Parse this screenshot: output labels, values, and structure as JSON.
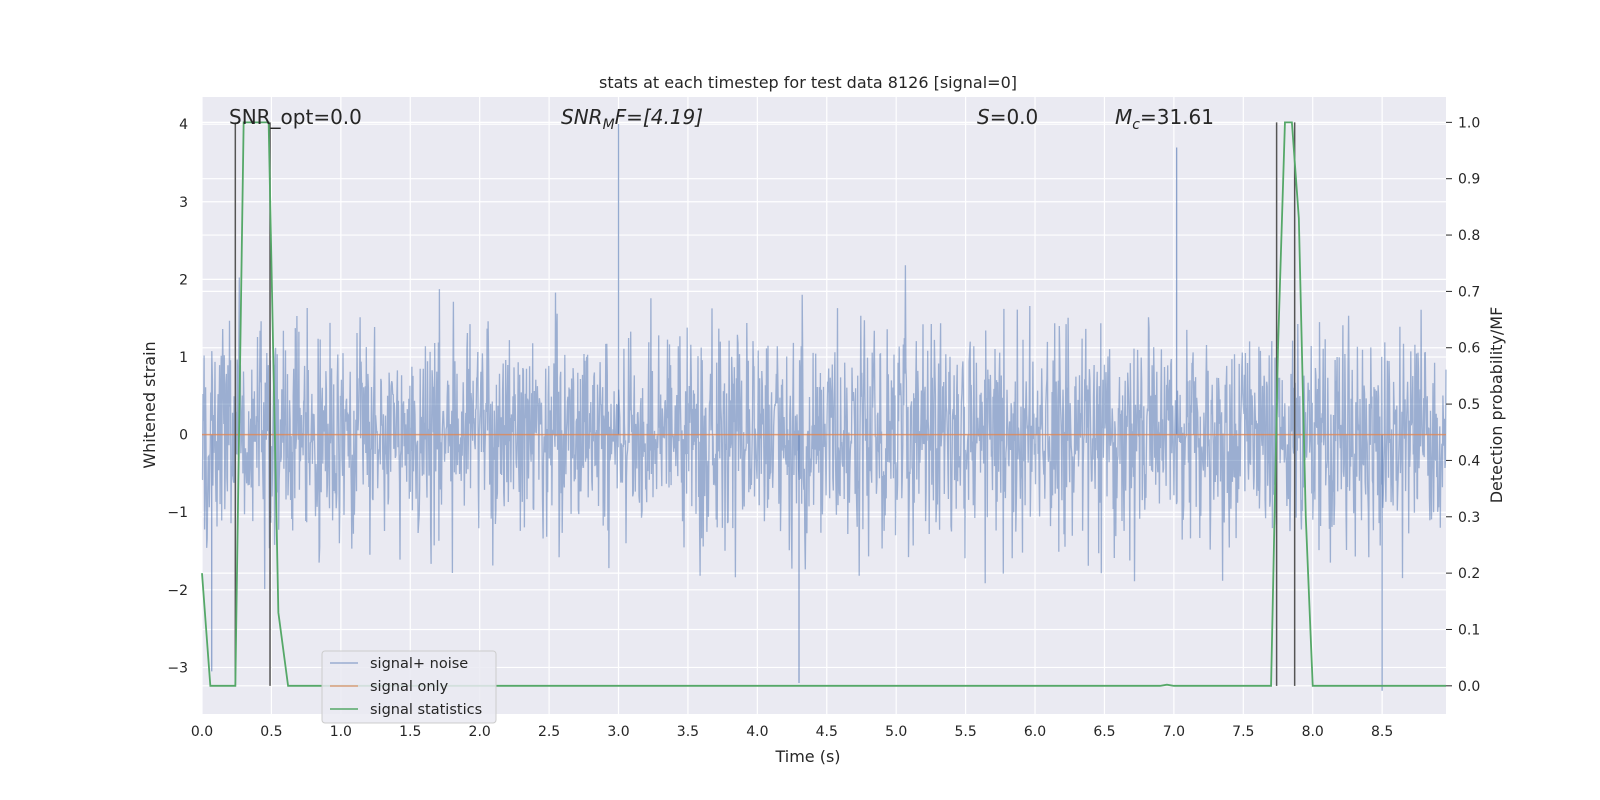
{
  "chart_data": {
    "type": "line",
    "title": "stats at each timestep for test data 8126 [signal=0]",
    "xlabel": "Time (s)",
    "ylabel_left": "Whitened strain",
    "ylabel_right": "Detection probability/MF",
    "xlim": [
      0.0,
      8.96
    ],
    "ylim_left": [
      -3.6,
      4.35
    ],
    "ylim_right": [
      -0.05,
      1.045
    ],
    "x_ticks": [
      "0.0",
      "0.5",
      "1.0",
      "1.5",
      "2.0",
      "2.5",
      "3.0",
      "3.5",
      "4.0",
      "4.5",
      "5.0",
      "5.5",
      "6.0",
      "6.5",
      "7.0",
      "7.5",
      "8.0",
      "8.5"
    ],
    "y_ticks_left": [
      "−3",
      "−2",
      "−1",
      "0",
      "1",
      "2",
      "3",
      "4"
    ],
    "y_ticks_right": [
      "0.0",
      "0.1",
      "0.2",
      "0.3",
      "0.4",
      "0.5",
      "0.6",
      "0.7",
      "0.8",
      "0.9",
      "1.0"
    ],
    "grid": true,
    "legend_position": "lower-left",
    "colors": {
      "signal_noise": "#4c72b0",
      "signal_only": "#dd8452",
      "signal_statistics": "#55a868",
      "markers": "#555555",
      "background": "#eaeaf2"
    },
    "annotations": {
      "snr_opt": "SNR_opt=0.0",
      "snr_mf_main": "SNR",
      "snr_mf_sub": "M",
      "snr_mf_rest": "F=[4.19]",
      "s_main": "S",
      "s_rest": "=0.0",
      "mc_main": "M",
      "mc_sub": "c",
      "mc_rest": "=31.61"
    },
    "series": [
      {
        "name": "signal+ noise",
        "axis": "left",
        "description_range": [
          -3.3,
          4.0
        ],
        "peaks": [
          {
            "x": 3.0,
            "y": 4.0
          },
          {
            "x": 7.02,
            "y": 3.7
          },
          {
            "x": 0.07,
            "y": -3.05
          },
          {
            "x": 4.3,
            "y": -3.2
          },
          {
            "x": 8.5,
            "y": -3.3
          }
        ]
      },
      {
        "name": "signal only",
        "axis": "left",
        "x": [
          0.0,
          8.96
        ],
        "y": [
          0.0,
          0.0
        ]
      },
      {
        "name": "signal statistics",
        "axis": "right",
        "x": [
          0.0,
          0.06,
          0.2,
          0.24,
          0.3,
          0.48,
          0.55,
          0.62,
          0.7,
          6.9,
          6.95,
          7.0,
          7.7,
          7.75,
          7.8,
          7.85,
          7.9,
          7.95,
          8.0,
          8.05,
          8.96
        ],
        "y": [
          0.2,
          0.0,
          0.0,
          0.0,
          1.0,
          1.0,
          0.13,
          0.0,
          0.0,
          0.0,
          0.002,
          0.0,
          0.0,
          0.6,
          1.0,
          1.0,
          0.83,
          0.3,
          0.0,
          0.0,
          0.0
        ]
      }
    ],
    "vertical_markers": [
      {
        "x": 0.24,
        "y_from": 0.0,
        "y_to": 1.0
      },
      {
        "x": 0.49,
        "y_from": 0.0,
        "y_to": 1.0
      },
      {
        "x": 7.74,
        "y_from": 0.0,
        "y_to": 1.0
      },
      {
        "x": 7.87,
        "y_from": 0.0,
        "y_to": 1.0
      }
    ]
  }
}
